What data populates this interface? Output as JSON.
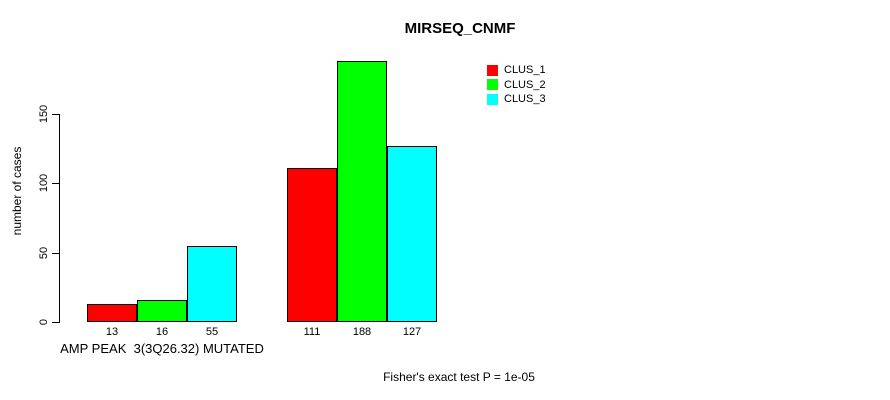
{
  "chart_data": {
    "type": "bar",
    "title": "MIRSEQ_CNMF",
    "ylabel": "number of cases",
    "xlabel": "",
    "yticks": [
      0,
      50,
      100,
      150
    ],
    "ylim": [
      0,
      190
    ],
    "grid": false,
    "value_labels": true,
    "legend_position": "top-right",
    "groups": [
      {
        "label": "AMP PEAK  3(3Q26.32) MUTATED",
        "values": [
          13,
          16,
          55
        ]
      },
      {
        "label": "",
        "values": [
          111,
          188,
          127
        ]
      }
    ],
    "series": [
      {
        "name": "CLUS_1",
        "color": "#ff0000",
        "values": [
          13,
          111
        ]
      },
      {
        "name": "CLUS_2",
        "color": "#00ff00",
        "values": [
          16,
          188
        ]
      },
      {
        "name": "CLUS_3",
        "color": "#00ffff",
        "values": [
          55,
          127
        ]
      }
    ],
    "annotation": "Fisher's exact test P = 1e-05"
  },
  "colors": {
    "background": "#ffffff",
    "bar_border": "#000000",
    "axis": "#000000",
    "text": "#000000"
  }
}
